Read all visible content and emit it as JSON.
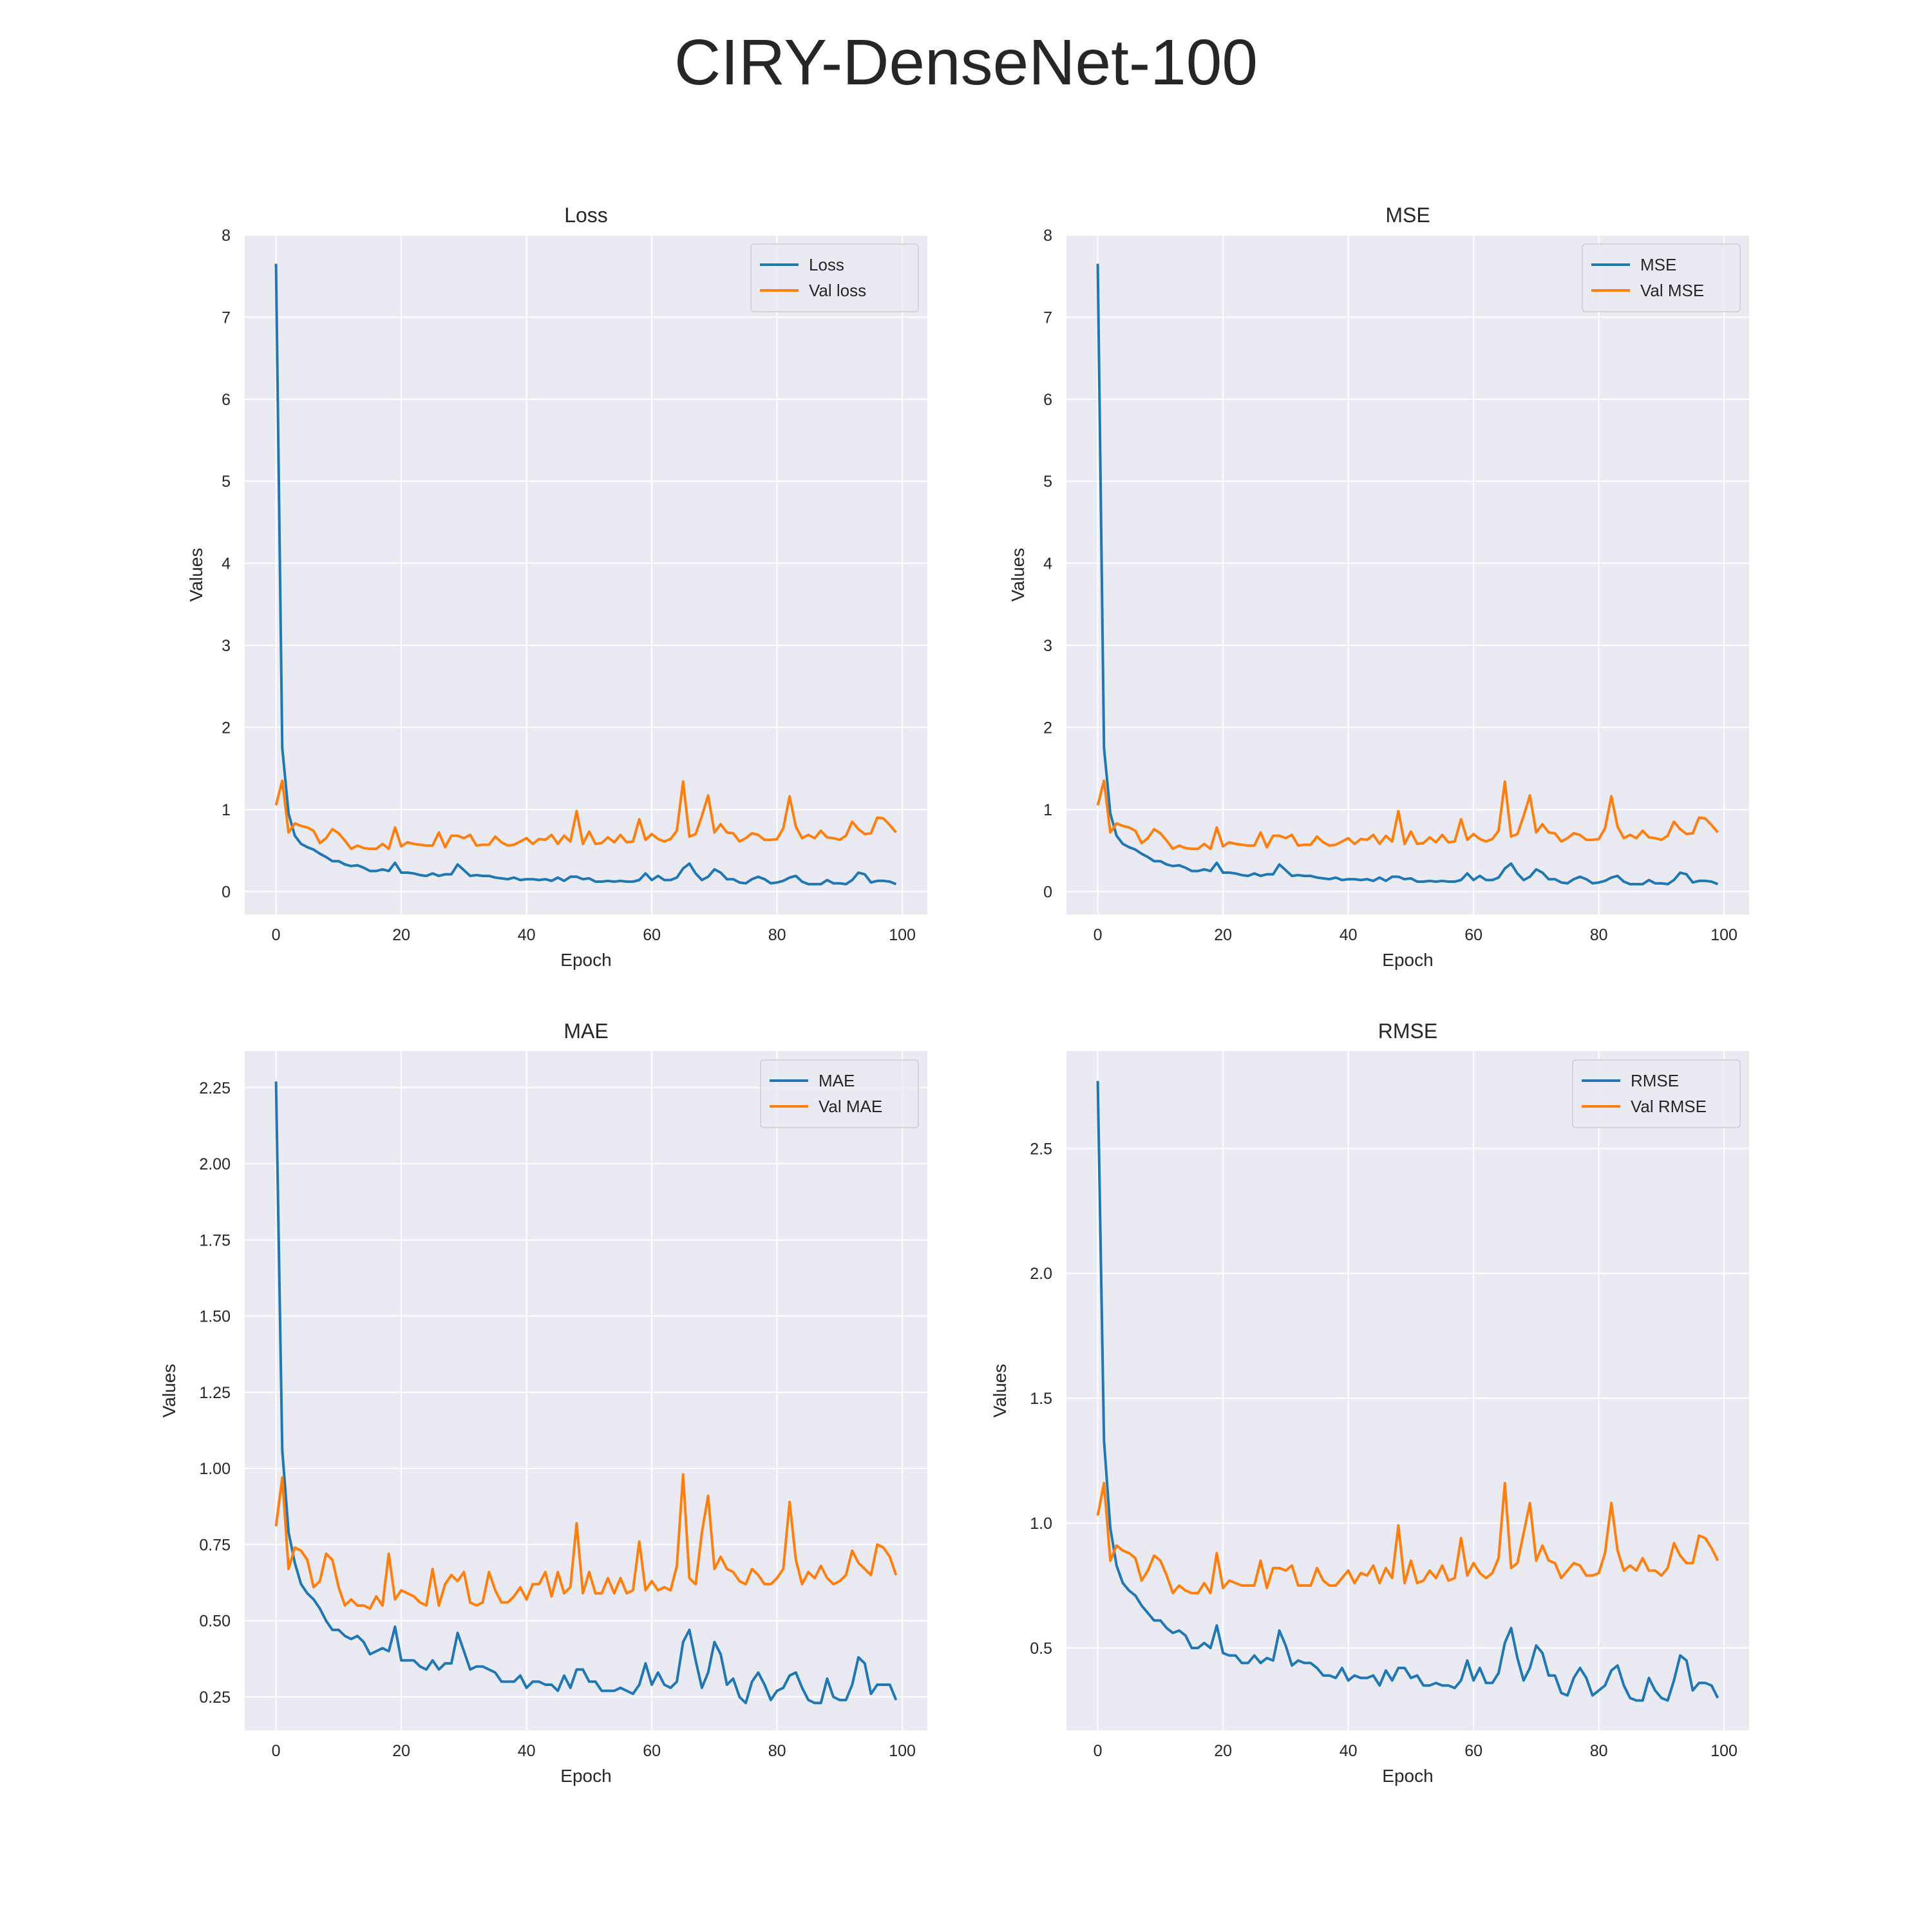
{
  "figure_title": "CIRY-DenseNet-100",
  "chart_data": [
    {
      "type": "line",
      "title": "Loss",
      "xlabel": "Epoch",
      "ylabel": "Values",
      "xlim": [
        -5,
        104
      ],
      "ylim": [
        -0.28,
        8.0
      ],
      "xticks": [
        0,
        20,
        40,
        60,
        80,
        100
      ],
      "yticks": [
        0,
        1,
        2,
        3,
        4,
        5,
        6,
        7,
        8
      ],
      "ytick_labels": [
        "0",
        "1",
        "2",
        "3",
        "4",
        "5",
        "6",
        "7",
        "8"
      ],
      "grid": true,
      "legend": "top-right",
      "series": [
        {
          "name": "Loss",
          "color": "#1f77b4",
          "values": [
            7.65,
            1.75,
            0.95,
            0.68,
            0.58,
            0.54,
            0.51,
            0.46,
            0.42,
            0.37,
            0.37,
            0.33,
            0.31,
            0.32,
            0.29,
            0.25,
            0.25,
            0.27,
            0.25,
            0.35,
            0.23,
            0.23,
            0.22,
            0.2,
            0.19,
            0.22,
            0.19,
            0.21,
            0.21,
            0.33,
            0.26,
            0.19,
            0.2,
            0.19,
            0.19,
            0.17,
            0.16,
            0.15,
            0.17,
            0.14,
            0.15,
            0.15,
            0.14,
            0.15,
            0.13,
            0.17,
            0.13,
            0.18,
            0.18,
            0.15,
            0.16,
            0.12,
            0.12,
            0.13,
            0.12,
            0.13,
            0.12,
            0.12,
            0.14,
            0.22,
            0.14,
            0.19,
            0.14,
            0.14,
            0.17,
            0.28,
            0.34,
            0.22,
            0.14,
            0.18,
            0.27,
            0.23,
            0.15,
            0.15,
            0.11,
            0.1,
            0.15,
            0.18,
            0.15,
            0.1,
            0.11,
            0.13,
            0.17,
            0.19,
            0.12,
            0.09,
            0.09,
            0.09,
            0.14,
            0.1,
            0.1,
            0.09,
            0.14,
            0.23,
            0.21,
            0.11,
            0.13,
            0.13,
            0.12,
            0.09
          ]
        },
        {
          "name": "Val loss",
          "color": "#ff7f0e",
          "values": [
            1.05,
            1.35,
            0.72,
            0.83,
            0.8,
            0.78,
            0.74,
            0.59,
            0.65,
            0.76,
            0.71,
            0.62,
            0.52,
            0.56,
            0.53,
            0.52,
            0.52,
            0.58,
            0.52,
            0.78,
            0.55,
            0.6,
            0.58,
            0.57,
            0.56,
            0.56,
            0.72,
            0.54,
            0.68,
            0.68,
            0.65,
            0.69,
            0.56,
            0.57,
            0.57,
            0.67,
            0.6,
            0.56,
            0.57,
            0.61,
            0.65,
            0.58,
            0.64,
            0.63,
            0.69,
            0.58,
            0.68,
            0.61,
            0.98,
            0.58,
            0.73,
            0.58,
            0.59,
            0.66,
            0.6,
            0.69,
            0.6,
            0.61,
            0.88,
            0.63,
            0.7,
            0.64,
            0.61,
            0.64,
            0.74,
            1.34,
            0.67,
            0.7,
            0.92,
            1.17,
            0.72,
            0.82,
            0.72,
            0.71,
            0.61,
            0.65,
            0.71,
            0.69,
            0.63,
            0.63,
            0.64,
            0.77,
            1.16,
            0.79,
            0.65,
            0.69,
            0.65,
            0.74,
            0.66,
            0.65,
            0.63,
            0.68,
            0.85,
            0.76,
            0.7,
            0.71,
            0.9,
            0.89,
            0.81,
            0.72
          ]
        }
      ]
    },
    {
      "type": "line",
      "title": "MSE",
      "xlabel": "Epoch",
      "ylabel": "Values",
      "xlim": [
        -5,
        104
      ],
      "ylim": [
        -0.28,
        8.0
      ],
      "xticks": [
        0,
        20,
        40,
        60,
        80,
        100
      ],
      "yticks": [
        0,
        1,
        2,
        3,
        4,
        5,
        6,
        7,
        8
      ],
      "ytick_labels": [
        "0",
        "1",
        "2",
        "3",
        "4",
        "5",
        "6",
        "7",
        "8"
      ],
      "grid": true,
      "legend": "top-right",
      "series": [
        {
          "name": "MSE",
          "color": "#1f77b4",
          "values": [
            7.65,
            1.75,
            0.95,
            0.68,
            0.58,
            0.54,
            0.51,
            0.46,
            0.42,
            0.37,
            0.37,
            0.33,
            0.31,
            0.32,
            0.29,
            0.25,
            0.25,
            0.27,
            0.25,
            0.35,
            0.23,
            0.23,
            0.22,
            0.2,
            0.19,
            0.22,
            0.19,
            0.21,
            0.21,
            0.33,
            0.26,
            0.19,
            0.2,
            0.19,
            0.19,
            0.17,
            0.16,
            0.15,
            0.17,
            0.14,
            0.15,
            0.15,
            0.14,
            0.15,
            0.13,
            0.17,
            0.13,
            0.18,
            0.18,
            0.15,
            0.16,
            0.12,
            0.12,
            0.13,
            0.12,
            0.13,
            0.12,
            0.12,
            0.14,
            0.22,
            0.14,
            0.19,
            0.14,
            0.14,
            0.17,
            0.28,
            0.34,
            0.22,
            0.14,
            0.18,
            0.27,
            0.23,
            0.15,
            0.15,
            0.11,
            0.1,
            0.15,
            0.18,
            0.15,
            0.1,
            0.11,
            0.13,
            0.17,
            0.19,
            0.12,
            0.09,
            0.09,
            0.09,
            0.14,
            0.1,
            0.1,
            0.09,
            0.14,
            0.23,
            0.21,
            0.11,
            0.13,
            0.13,
            0.12,
            0.09
          ]
        },
        {
          "name": "Val MSE",
          "color": "#ff7f0e",
          "values": [
            1.05,
            1.35,
            0.72,
            0.83,
            0.8,
            0.78,
            0.74,
            0.59,
            0.65,
            0.76,
            0.71,
            0.62,
            0.52,
            0.56,
            0.53,
            0.52,
            0.52,
            0.58,
            0.52,
            0.78,
            0.55,
            0.6,
            0.58,
            0.57,
            0.56,
            0.56,
            0.72,
            0.54,
            0.68,
            0.68,
            0.65,
            0.69,
            0.56,
            0.57,
            0.57,
            0.67,
            0.6,
            0.56,
            0.57,
            0.61,
            0.65,
            0.58,
            0.64,
            0.63,
            0.69,
            0.58,
            0.68,
            0.61,
            0.98,
            0.58,
            0.73,
            0.58,
            0.59,
            0.66,
            0.6,
            0.69,
            0.6,
            0.61,
            0.88,
            0.63,
            0.7,
            0.64,
            0.61,
            0.64,
            0.74,
            1.34,
            0.67,
            0.7,
            0.92,
            1.17,
            0.72,
            0.82,
            0.72,
            0.71,
            0.61,
            0.65,
            0.71,
            0.69,
            0.63,
            0.63,
            0.64,
            0.77,
            1.16,
            0.79,
            0.65,
            0.69,
            0.65,
            0.74,
            0.66,
            0.65,
            0.63,
            0.68,
            0.85,
            0.76,
            0.7,
            0.71,
            0.9,
            0.89,
            0.81,
            0.72
          ]
        }
      ]
    },
    {
      "type": "line",
      "title": "MAE",
      "xlabel": "Epoch",
      "ylabel": "Values",
      "xlim": [
        -5,
        104
      ],
      "ylim": [
        0.14,
        2.37
      ],
      "xticks": [
        0,
        20,
        40,
        60,
        80,
        100
      ],
      "yticks": [
        0.25,
        0.5,
        0.75,
        1.0,
        1.25,
        1.5,
        1.75,
        2.0,
        2.25
      ],
      "ytick_labels": [
        "0.25",
        "0.50",
        "0.75",
        "1.00",
        "1.25",
        "1.50",
        "1.75",
        "2.00",
        "2.25"
      ],
      "grid": true,
      "legend": "top-right",
      "series": [
        {
          "name": "MAE",
          "color": "#1f77b4",
          "values": [
            2.27,
            1.06,
            0.79,
            0.69,
            0.62,
            0.59,
            0.57,
            0.54,
            0.5,
            0.47,
            0.47,
            0.45,
            0.44,
            0.45,
            0.43,
            0.39,
            0.4,
            0.41,
            0.4,
            0.48,
            0.37,
            0.37,
            0.37,
            0.35,
            0.34,
            0.37,
            0.34,
            0.36,
            0.36,
            0.46,
            0.4,
            0.34,
            0.35,
            0.35,
            0.34,
            0.33,
            0.3,
            0.3,
            0.3,
            0.32,
            0.28,
            0.3,
            0.3,
            0.29,
            0.29,
            0.27,
            0.32,
            0.28,
            0.34,
            0.34,
            0.3,
            0.3,
            0.27,
            0.27,
            0.27,
            0.28,
            0.27,
            0.26,
            0.29,
            0.36,
            0.29,
            0.33,
            0.29,
            0.28,
            0.3,
            0.43,
            0.47,
            0.37,
            0.28,
            0.33,
            0.43,
            0.39,
            0.29,
            0.31,
            0.25,
            0.23,
            0.3,
            0.33,
            0.29,
            0.24,
            0.27,
            0.28,
            0.32,
            0.33,
            0.28,
            0.24,
            0.23,
            0.23,
            0.31,
            0.25,
            0.24,
            0.24,
            0.29,
            0.38,
            0.36,
            0.26,
            0.29,
            0.29,
            0.29,
            0.24
          ]
        },
        {
          "name": "Val MAE",
          "color": "#ff7f0e",
          "values": [
            0.81,
            0.97,
            0.67,
            0.74,
            0.73,
            0.7,
            0.61,
            0.63,
            0.72,
            0.7,
            0.61,
            0.55,
            0.57,
            0.55,
            0.55,
            0.54,
            0.58,
            0.55,
            0.72,
            0.57,
            0.6,
            0.59,
            0.58,
            0.56,
            0.55,
            0.67,
            0.55,
            0.62,
            0.65,
            0.63,
            0.66,
            0.56,
            0.55,
            0.56,
            0.66,
            0.6,
            0.56,
            0.56,
            0.58,
            0.61,
            0.57,
            0.62,
            0.62,
            0.66,
            0.58,
            0.66,
            0.59,
            0.61,
            0.82,
            0.59,
            0.66,
            0.59,
            0.59,
            0.64,
            0.59,
            0.64,
            0.59,
            0.6,
            0.76,
            0.6,
            0.63,
            0.6,
            0.61,
            0.6,
            0.68,
            0.98,
            0.64,
            0.62,
            0.79,
            0.91,
            0.67,
            0.71,
            0.67,
            0.66,
            0.63,
            0.62,
            0.67,
            0.65,
            0.62,
            0.62,
            0.64,
            0.67,
            0.89,
            0.7,
            0.62,
            0.66,
            0.64,
            0.68,
            0.64,
            0.62,
            0.63,
            0.65,
            0.73,
            0.69,
            0.67,
            0.65,
            0.75,
            0.74,
            0.71,
            0.65
          ]
        }
      ]
    },
    {
      "type": "line",
      "title": "RMSE",
      "xlabel": "Epoch",
      "ylabel": "Values",
      "xlim": [
        -5,
        104
      ],
      "ylim": [
        0.17,
        2.89
      ],
      "xticks": [
        0,
        20,
        40,
        60,
        80,
        100
      ],
      "yticks": [
        0.5,
        1.0,
        1.5,
        2.0,
        2.5
      ],
      "ytick_labels": [
        "0.5",
        "1.0",
        "1.5",
        "2.0",
        "2.5"
      ],
      "grid": true,
      "legend": "top-right",
      "series": [
        {
          "name": "RMSE",
          "color": "#1f77b4",
          "values": [
            2.77,
            1.33,
            0.98,
            0.83,
            0.76,
            0.73,
            0.71,
            0.67,
            0.64,
            0.61,
            0.61,
            0.58,
            0.56,
            0.57,
            0.55,
            0.5,
            0.5,
            0.52,
            0.5,
            0.59,
            0.48,
            0.47,
            0.47,
            0.44,
            0.44,
            0.47,
            0.44,
            0.46,
            0.45,
            0.57,
            0.51,
            0.43,
            0.45,
            0.44,
            0.44,
            0.42,
            0.39,
            0.39,
            0.38,
            0.42,
            0.37,
            0.39,
            0.38,
            0.38,
            0.39,
            0.35,
            0.41,
            0.37,
            0.42,
            0.42,
            0.38,
            0.39,
            0.35,
            0.35,
            0.36,
            0.35,
            0.35,
            0.34,
            0.37,
            0.45,
            0.37,
            0.42,
            0.36,
            0.36,
            0.4,
            0.52,
            0.58,
            0.46,
            0.37,
            0.42,
            0.51,
            0.48,
            0.39,
            0.39,
            0.32,
            0.31,
            0.38,
            0.42,
            0.38,
            0.31,
            0.33,
            0.35,
            0.41,
            0.43,
            0.35,
            0.3,
            0.29,
            0.29,
            0.38,
            0.33,
            0.3,
            0.29,
            0.37,
            0.47,
            0.45,
            0.33,
            0.36,
            0.36,
            0.35,
            0.3
          ]
        },
        {
          "name": "Val RMSE",
          "color": "#ff7f0e",
          "values": [
            1.03,
            1.16,
            0.85,
            0.91,
            0.89,
            0.88,
            0.86,
            0.77,
            0.81,
            0.87,
            0.85,
            0.79,
            0.72,
            0.75,
            0.73,
            0.72,
            0.72,
            0.76,
            0.72,
            0.88,
            0.74,
            0.77,
            0.76,
            0.75,
            0.75,
            0.75,
            0.85,
            0.74,
            0.82,
            0.82,
            0.81,
            0.83,
            0.75,
            0.75,
            0.75,
            0.82,
            0.77,
            0.75,
            0.75,
            0.78,
            0.81,
            0.76,
            0.8,
            0.79,
            0.83,
            0.76,
            0.82,
            0.78,
            0.99,
            0.76,
            0.85,
            0.76,
            0.77,
            0.81,
            0.78,
            0.83,
            0.77,
            0.78,
            0.94,
            0.79,
            0.84,
            0.8,
            0.78,
            0.8,
            0.86,
            1.16,
            0.82,
            0.84,
            0.96,
            1.08,
            0.85,
            0.91,
            0.85,
            0.84,
            0.78,
            0.81,
            0.84,
            0.83,
            0.79,
            0.79,
            0.8,
            0.88,
            1.08,
            0.89,
            0.81,
            0.83,
            0.81,
            0.86,
            0.81,
            0.81,
            0.79,
            0.82,
            0.92,
            0.87,
            0.84,
            0.84,
            0.95,
            0.94,
            0.9,
            0.85
          ]
        }
      ]
    }
  ]
}
